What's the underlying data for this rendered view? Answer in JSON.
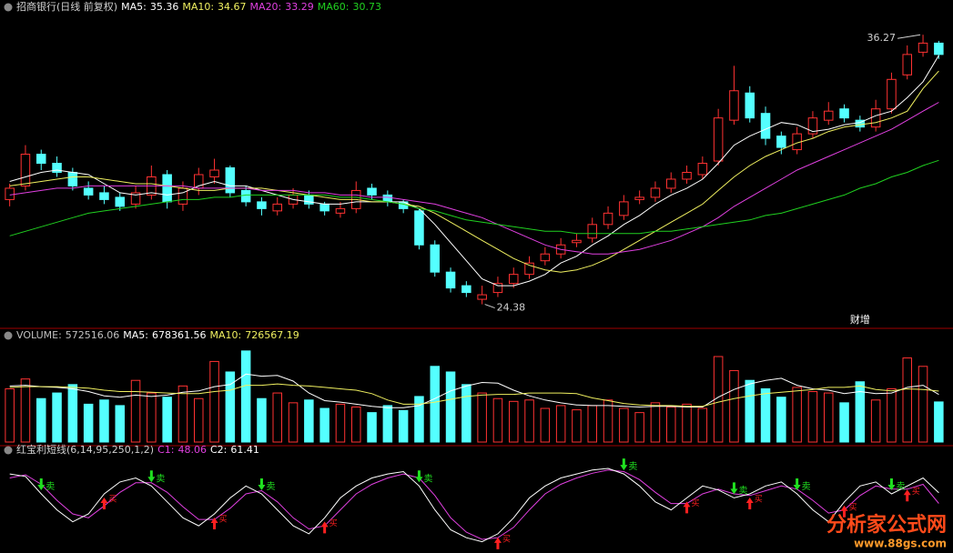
{
  "chart_data": [
    {
      "type": "candlestick",
      "title": "招商银行(日线 前复权)",
      "open": [
        29.0,
        29.6,
        31.0,
        30.6,
        30.2,
        29.5,
        29.3,
        29.1,
        28.8,
        29.2,
        30.1,
        28.8,
        29.5,
        30.0,
        30.4,
        29.4,
        28.9,
        28.5,
        28.8,
        29.2,
        28.8,
        28.4,
        28.6,
        29.5,
        29.2,
        28.9,
        28.5,
        27.0,
        25.8,
        25.2,
        24.6,
        24.9,
        25.3,
        25.7,
        26.3,
        26.6,
        27.1,
        27.3,
        27.9,
        28.3,
        29.0,
        29.1,
        29.5,
        29.9,
        30.1,
        30.7,
        32.5,
        33.7,
        32.8,
        31.8,
        31.2,
        31.9,
        32.5,
        33.0,
        32.5,
        32.2,
        33.0,
        34.5,
        35.5,
        35.9
      ],
      "high": [
        29.7,
        31.4,
        31.2,
        30.9,
        30.4,
        29.8,
        29.6,
        29.3,
        29.6,
        30.5,
        30.3,
        29.8,
        30.4,
        30.8,
        30.5,
        29.6,
        29.1,
        29.1,
        29.5,
        29.4,
        28.9,
        28.9,
        29.8,
        29.7,
        29.4,
        29.0,
        28.6,
        27.2,
        26.0,
        25.4,
        25.2,
        25.6,
        26.0,
        26.5,
        26.9,
        27.3,
        27.5,
        28.2,
        28.7,
        29.2,
        29.4,
        29.8,
        30.2,
        30.5,
        30.9,
        33.0,
        34.9,
        34.0,
        33.1,
        32.0,
        32.2,
        32.9,
        33.3,
        33.2,
        32.7,
        33.4,
        34.6,
        35.8,
        36.27,
        36.0
      ],
      "low": [
        28.7,
        29.4,
        30.3,
        30.0,
        29.4,
        29.0,
        28.8,
        28.5,
        28.6,
        29.0,
        28.6,
        28.5,
        29.2,
        29.7,
        29.1,
        28.7,
        28.3,
        28.3,
        28.6,
        28.6,
        28.3,
        28.2,
        28.4,
        29.0,
        28.7,
        28.4,
        26.8,
        25.6,
        24.9,
        24.7,
        24.38,
        24.7,
        25.1,
        25.5,
        26.1,
        26.4,
        26.9,
        27.1,
        27.7,
        28.1,
        28.8,
        28.9,
        29.3,
        29.7,
        29.9,
        30.5,
        32.3,
        32.4,
        31.4,
        31.0,
        31.0,
        31.7,
        32.3,
        32.4,
        32.0,
        32.0,
        32.8,
        34.3,
        35.3,
        35.2
      ],
      "close": [
        29.5,
        31.0,
        30.6,
        30.2,
        29.6,
        29.2,
        29.0,
        28.7,
        29.3,
        30.0,
        28.9,
        29.5,
        30.1,
        30.3,
        29.3,
        28.9,
        28.6,
        28.8,
        29.2,
        28.8,
        28.5,
        28.6,
        29.4,
        29.2,
        28.9,
        28.6,
        27.0,
        25.8,
        25.1,
        24.9,
        24.8,
        25.3,
        25.7,
        26.2,
        26.6,
        27.0,
        27.2,
        27.9,
        28.4,
        28.9,
        29.1,
        29.5,
        29.9,
        30.2,
        30.6,
        32.6,
        33.8,
        32.6,
        31.7,
        31.3,
        31.9,
        32.6,
        32.9,
        32.6,
        32.2,
        33.0,
        34.3,
        35.4,
        35.9,
        35.4
      ],
      "up_color": "#ff3232",
      "down_color": "#54ffff",
      "ylim": [
        23.6,
        37.0
      ],
      "series": [
        {
          "name": "MA5:",
          "color": "#ffffff",
          "last": 35.36,
          "values": [
            29.8,
            30.0,
            30.2,
            30.3,
            30.2,
            30.1,
            29.7,
            29.3,
            29.2,
            29.3,
            29.2,
            29.3,
            29.6,
            29.8,
            29.6,
            29.6,
            29.4,
            29.2,
            29.0,
            28.9,
            28.8,
            28.8,
            28.9,
            28.9,
            28.9,
            28.9,
            28.6,
            27.9,
            27.1,
            26.3,
            25.5,
            25.2,
            25.2,
            25.4,
            25.7,
            26.2,
            26.5,
            27.0,
            27.4,
            27.9,
            28.3,
            28.8,
            29.2,
            29.5,
            29.9,
            30.6,
            31.4,
            31.8,
            32.1,
            32.4,
            32.3,
            32.0,
            32.1,
            32.3,
            32.4,
            32.7,
            32.9,
            33.5,
            34.2,
            35.36
          ]
        },
        {
          "name": "MA10:",
          "color": "#f0f060",
          "last": 34.67,
          "values": [
            29.6,
            29.7,
            29.8,
            29.9,
            30.0,
            30.0,
            29.9,
            29.8,
            29.7,
            29.7,
            29.6,
            29.5,
            29.4,
            29.4,
            29.5,
            29.5,
            29.5,
            29.4,
            29.3,
            29.2,
            29.1,
            29.0,
            29.0,
            28.9,
            28.9,
            28.8,
            28.7,
            28.4,
            28.0,
            27.6,
            27.2,
            26.8,
            26.4,
            26.1,
            25.9,
            25.8,
            25.9,
            26.1,
            26.4,
            26.8,
            27.2,
            27.6,
            28.0,
            28.4,
            28.8,
            29.4,
            30.0,
            30.5,
            30.9,
            31.2,
            31.5,
            31.7,
            32.0,
            32.2,
            32.3,
            32.4,
            32.6,
            32.9,
            33.9,
            34.67
          ]
        },
        {
          "name": "MA20:",
          "color": "#e040e0",
          "last": 33.29,
          "values": [
            29.2,
            29.3,
            29.4,
            29.5,
            29.5,
            29.6,
            29.6,
            29.6,
            29.6,
            29.6,
            29.6,
            29.6,
            29.5,
            29.5,
            29.5,
            29.5,
            29.4,
            29.4,
            29.4,
            29.3,
            29.3,
            29.2,
            29.2,
            29.1,
            29.1,
            29.0,
            28.9,
            28.8,
            28.6,
            28.4,
            28.2,
            27.9,
            27.6,
            27.3,
            27.0,
            26.8,
            26.7,
            26.6,
            26.6,
            26.7,
            26.8,
            27.0,
            27.2,
            27.5,
            27.8,
            28.2,
            28.7,
            29.1,
            29.5,
            29.9,
            30.3,
            30.6,
            30.9,
            31.2,
            31.5,
            31.8,
            32.1,
            32.5,
            32.9,
            33.29
          ]
        },
        {
          "name": "MA60:",
          "color": "#20d020",
          "last": 30.73,
          "values": [
            27.4,
            27.6,
            27.8,
            28.0,
            28.2,
            28.4,
            28.5,
            28.6,
            28.7,
            28.8,
            28.9,
            29.0,
            29.0,
            29.1,
            29.1,
            29.2,
            29.2,
            29.2,
            29.2,
            29.2,
            29.2,
            29.1,
            29.1,
            29.0,
            28.9,
            28.8,
            28.6,
            28.5,
            28.3,
            28.1,
            28.0,
            27.9,
            27.8,
            27.7,
            27.6,
            27.6,
            27.5,
            27.5,
            27.5,
            27.5,
            27.5,
            27.6,
            27.6,
            27.7,
            27.8,
            27.9,
            28.0,
            28.1,
            28.3,
            28.4,
            28.6,
            28.8,
            29.0,
            29.2,
            29.5,
            29.7,
            30.0,
            30.2,
            30.5,
            30.73
          ]
        }
      ],
      "annotations": {
        "high": 36.27,
        "low": 24.38
      },
      "events": [
        {
          "label": "财增",
          "index": 54
        }
      ]
    },
    {
      "type": "bar",
      "values": [
        760000,
        900000,
        620000,
        700000,
        820000,
        540000,
        600000,
        520000,
        880000,
        700000,
        640000,
        800000,
        620000,
        1150000,
        1000000,
        1300000,
        620000,
        700000,
        560000,
        600000,
        480000,
        540000,
        500000,
        420000,
        520000,
        450000,
        650000,
        1080000,
        1000000,
        820000,
        700000,
        620000,
        580000,
        600000,
        480000,
        520000,
        460000,
        520000,
        600000,
        480000,
        420000,
        560000,
        500000,
        540000,
        480000,
        1220000,
        1020000,
        880000,
        760000,
        640000,
        780000,
        720000,
        700000,
        560000,
        860000,
        600000,
        760000,
        1200000,
        1080000,
        572516.06
      ],
      "name": "VOLUME:",
      "color": "#c0c0c0",
      "last": 572516.06,
      "ylim": [
        0,
        1350000
      ],
      "series": [
        {
          "name": "MA5:",
          "color": "#ffffff",
          "last": 678361.56,
          "values": [
            800000,
            810000,
            790000,
            780000,
            760000,
            720000,
            660000,
            640000,
            670000,
            650000,
            670000,
            710000,
            730000,
            790000,
            820000,
            970000,
            940000,
            950000,
            870000,
            700000,
            590000,
            570000,
            540000,
            510000,
            490000,
            490000,
            520000,
            620000,
            730000,
            800000,
            850000,
            840000,
            740000,
            660000,
            600000,
            560000,
            530000,
            520000,
            520000,
            510000,
            500000,
            510000,
            510000,
            500000,
            500000,
            640000,
            750000,
            830000,
            880000,
            910000,
            810000,
            760000,
            740000,
            690000,
            720000,
            690000,
            700000,
            780000,
            810000,
            678361.56
          ]
        },
        {
          "name": "MA10:",
          "color": "#f0f060",
          "last": 726567.19,
          "values": [
            780000,
            790000,
            790000,
            790000,
            780000,
            770000,
            740000,
            720000,
            720000,
            710000,
            700000,
            690000,
            690000,
            720000,
            740000,
            810000,
            810000,
            830000,
            810000,
            800000,
            780000,
            760000,
            740000,
            690000,
            600000,
            540000,
            540000,
            570000,
            610000,
            650000,
            670000,
            680000,
            680000,
            700000,
            700000,
            700000,
            690000,
            630000,
            590000,
            550000,
            530000,
            520000,
            520000,
            510000,
            510000,
            570000,
            620000,
            660000,
            690000,
            710000,
            730000,
            750000,
            780000,
            780000,
            800000,
            750000,
            730000,
            760000,
            750000,
            726567.19
          ]
        }
      ]
    },
    {
      "type": "line",
      "title": "红宝利短线(6,14,95,250,1,2)",
      "ylim": [
        -5,
        100
      ],
      "series": [
        {
          "name": "C1:",
          "color": "#e040e0",
          "last": 48.06,
          "values": [
            80,
            84,
            72,
            52,
            35,
            30,
            45,
            62,
            74,
            74,
            62,
            44,
            28,
            28,
            42,
            60,
            64,
            50,
            30,
            16,
            20,
            40,
            60,
            72,
            80,
            85,
            80,
            58,
            30,
            12,
            3,
            5,
            18,
            40,
            60,
            72,
            80,
            86,
            90,
            88,
            78,
            62,
            48,
            48,
            60,
            66,
            60,
            58,
            64,
            70,
            66,
            52,
            36,
            40,
            58,
            70,
            66,
            66,
            72,
            48.06
          ]
        },
        {
          "name": "C2:",
          "color": "#ffffff",
          "last": 61.41,
          "values": [
            85,
            82,
            60,
            40,
            25,
            35,
            60,
            75,
            80,
            70,
            50,
            30,
            20,
            35,
            55,
            70,
            60,
            40,
            20,
            10,
            30,
            55,
            70,
            80,
            85,
            88,
            70,
            40,
            15,
            5,
            0,
            10,
            30,
            55,
            70,
            80,
            85,
            90,
            92,
            85,
            70,
            50,
            40,
            55,
            70,
            65,
            55,
            60,
            70,
            75,
            60,
            40,
            25,
            50,
            70,
            75,
            60,
            70,
            80,
            61.41
          ]
        }
      ],
      "signals": [
        {
          "label": "卖",
          "color": "#20e020",
          "direction": "down",
          "indices": [
            2,
            9,
            16,
            26,
            39,
            46,
            50,
            56
          ]
        },
        {
          "label": "买",
          "color": "#ff2020",
          "direction": "up",
          "indices": [
            6,
            13,
            20,
            31,
            43,
            47,
            53,
            57
          ]
        }
      ]
    }
  ],
  "watermark": {
    "title": "分析家公式网",
    "url": "www.88gs.com"
  }
}
